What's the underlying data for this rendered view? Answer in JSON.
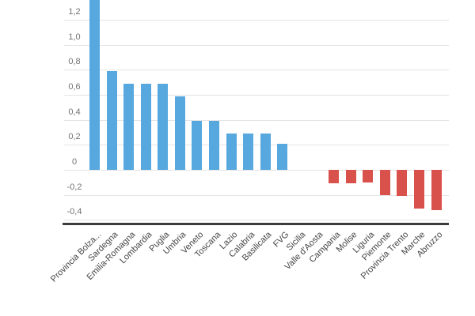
{
  "chart_data": {
    "type": "bar",
    "title": "",
    "xlabel": "",
    "ylabel": "",
    "legend": "none",
    "grid": true,
    "decimal_format": "comma",
    "x_label_rotation_deg": -45,
    "categories": [
      "Provincia Bolza...",
      "Sardegna",
      "Emilia-Romagna",
      "Lombardia",
      "Puglia",
      "Umbria",
      "Veneto",
      "Toscana",
      "Lazio",
      "Calabria",
      "Basilicata",
      "FVG",
      "Sicilia",
      "Valle d'Aosta",
      "Campania",
      "Molise",
      "Liguria",
      "Piemonte",
      "Provincia Trento",
      "Marche",
      "Abruzzo"
    ],
    "values": [
      1.4,
      0.79,
      0.69,
      0.69,
      0.69,
      0.59,
      0.39,
      0.39,
      0.29,
      0.29,
      0.29,
      0.21,
      0,
      0,
      -0.11,
      -0.11,
      -0.1,
      -0.2,
      -0.21,
      -0.31,
      -0.32
    ],
    "first_bar_clipped_at_top": true,
    "ylim_visible": [
      -0.44,
      1.36
    ],
    "y_ticks": [
      {
        "label": "1,2",
        "value": 1.2
      },
      {
        "label": "1,0",
        "value": 1.0
      },
      {
        "label": "0,8",
        "value": 0.8
      },
      {
        "label": "0,6",
        "value": 0.6
      },
      {
        "label": "0,4",
        "value": 0.4
      },
      {
        "label": "0,2",
        "value": 0.2
      },
      {
        "label": "0",
        "value": 0
      },
      {
        "label": "-0,2",
        "value": -0.2
      },
      {
        "label": "-0,4",
        "value": -0.4
      }
    ],
    "colors": {
      "positive": "#57a8de",
      "negative": "#d9514b",
      "gridline": "#e4e4e4",
      "axis_line": "#3d3d3d",
      "y_tick_text": "#737373",
      "x_tick_text": "#454545",
      "background": "#ffffff"
    }
  }
}
